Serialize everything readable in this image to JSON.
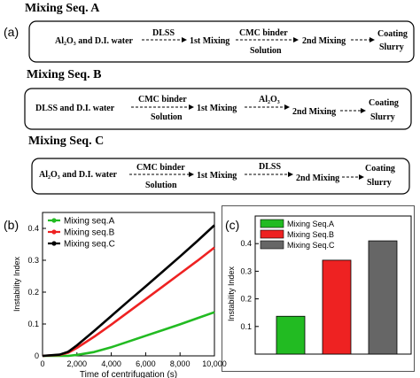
{
  "panel_a": {
    "label": "(a)",
    "sequences": [
      {
        "title": "Mixing Seq. A",
        "start": "Al₂O₃ and D.I. water",
        "add1": "DLSS",
        "mix1": "1st Mixing",
        "add2_line1": "CMC binder",
        "add2_line2": "Solution",
        "mix2": "2nd Mixing",
        "end_line1": "Coating",
        "end_line2": "Slurry"
      },
      {
        "title": "Mixing Seq. B",
        "start": "DLSS and D.I. water",
        "add1_line1": "CMC binder",
        "add1_line2": "Solution",
        "mix1": "1st Mixing",
        "add2": "Al₂O₃",
        "mix2": "2nd Mixing",
        "end_line1": "Coating",
        "end_line2": "Slurry"
      },
      {
        "title": "Mixing Seq. C",
        "start": "Al₂O₃ and D.I. water",
        "add1_line1": "CMC binder",
        "add1_line2": "Solution",
        "mix1": "1st Mixing",
        "add2": "DLSS",
        "mix2": "2nd Mixing",
        "end_line1": "Coating",
        "end_line2": "Slurry"
      }
    ]
  },
  "panel_b_label": "(b)",
  "panel_c_label": "(c)",
  "colors": {
    "green": "#22bb22",
    "red": "#ee2222",
    "black": "#000000",
    "gray": "#666666"
  },
  "chart_data": [
    {
      "type": "line",
      "xlabel": "Time of centrifugation (s)",
      "ylabel": "Instability Index",
      "xlim": [
        0,
        10000
      ],
      "ylim": [
        0,
        0.45
      ],
      "xticks": [
        "0",
        "2,000",
        "4,000",
        "6,000",
        "8,000",
        "10,000"
      ],
      "yticks": [
        "0",
        "0.1",
        "0.2",
        "0.3",
        "0.4"
      ],
      "legend_position": "top-left",
      "x": [
        0,
        1000,
        1500,
        2000,
        3000,
        4000,
        5000,
        6000,
        7000,
        8000,
        9000,
        10000
      ],
      "series": [
        {
          "name": "Mixing seq.A",
          "color": "#22bb22",
          "values": [
            0,
            0,
            0,
            0.003,
            0.012,
            0.027,
            0.045,
            0.063,
            0.081,
            0.099,
            0.118,
            0.137
          ]
        },
        {
          "name": "Mixing seq.B",
          "color": "#ee2222",
          "values": [
            0,
            0.003,
            0.01,
            0.025,
            0.06,
            0.098,
            0.138,
            0.178,
            0.218,
            0.258,
            0.298,
            0.34
          ]
        },
        {
          "name": "Mixing seq.C",
          "color": "#000000",
          "values": [
            0,
            0.004,
            0.013,
            0.033,
            0.078,
            0.125,
            0.172,
            0.218,
            0.265,
            0.312,
            0.36,
            0.41
          ]
        }
      ]
    },
    {
      "type": "bar",
      "ylabel": "Instability Index",
      "ylim": [
        0,
        0.5
      ],
      "yticks": [
        "0.1",
        "0.2",
        "0.3",
        "0.4"
      ],
      "legend_position": "top-left",
      "categories": [
        "Mixing Seq.A",
        "Mixing Seq.B",
        "Mixing Seq.C"
      ],
      "values": [
        0.137,
        0.34,
        0.41
      ],
      "colors": [
        "#22bb22",
        "#ee2222",
        "#666666"
      ]
    }
  ]
}
